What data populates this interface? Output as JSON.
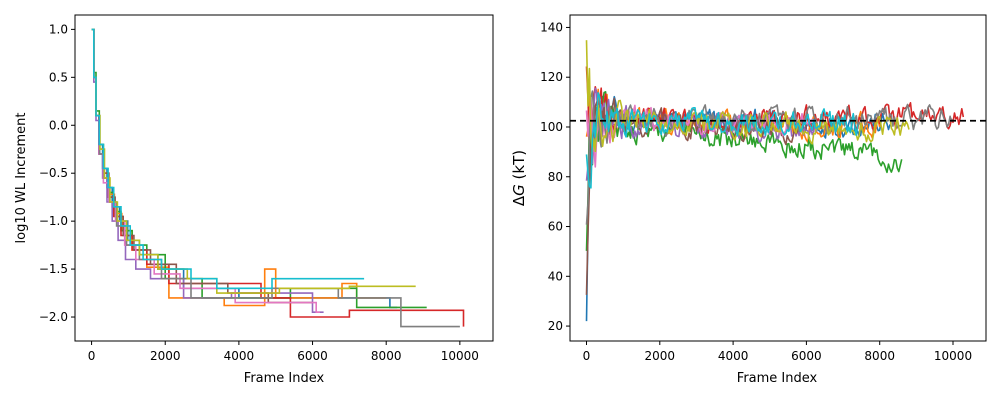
{
  "colors": [
    "#1f77b4",
    "#ff7f0e",
    "#2ca02c",
    "#d62728",
    "#9467bd",
    "#8c564b",
    "#e377c2",
    "#7f7f7f",
    "#bcbd22",
    "#17becf"
  ],
  "chart_data": [
    {
      "type": "line",
      "subtype": "step",
      "xlabel": "Frame Index",
      "ylabel": "log10 WL Increment",
      "xlim": [
        -450,
        10900
      ],
      "ylim": [
        -2.25,
        1.15
      ],
      "xticks": [
        0,
        2000,
        4000,
        6000,
        8000,
        10000
      ],
      "yticks": [
        -2.0,
        -1.5,
        -1.0,
        -0.5,
        0.0,
        0.5,
        1.0
      ],
      "xtick_labels": [
        "0",
        "2000",
        "4000",
        "6000",
        "8000",
        "10000"
      ],
      "ytick_labels": [
        "−2.0",
        "−1.5",
        "−1.0",
        "−0.5",
        "0.0",
        "0.5",
        "1.0"
      ],
      "grid": false,
      "series": [
        {
          "steps": [
            [
              0,
              1.0
            ],
            [
              60,
              0.5
            ],
            [
              120,
              0.1
            ],
            [
              200,
              -0.2
            ],
            [
              300,
              -0.45
            ],
            [
              420,
              -0.65
            ],
            [
              560,
              -0.85
            ],
            [
              760,
              -1.0
            ],
            [
              980,
              -1.2
            ],
            [
              1300,
              -1.35
            ],
            [
              1800,
              -1.5
            ],
            [
              2500,
              -1.7
            ],
            [
              4000,
              -1.8
            ],
            [
              8100,
              -1.9
            ]
          ],
          "end": 8300
        },
        {
          "steps": [
            [
              0,
              1.0
            ],
            [
              60,
              0.5
            ],
            [
              120,
              0.1
            ],
            [
              220,
              -0.25
            ],
            [
              330,
              -0.5
            ],
            [
              460,
              -0.72
            ],
            [
              620,
              -0.92
            ],
            [
              820,
              -1.1
            ],
            [
              1100,
              -1.3
            ],
            [
              1500,
              -1.48
            ],
            [
              2100,
              -1.8
            ],
            [
              3600,
              -1.88
            ],
            [
              4700,
              -1.5
            ],
            [
              5000,
              -1.8
            ],
            [
              6800,
              -1.65
            ],
            [
              7200,
              -1.8
            ]
          ],
          "end": 8000
        },
        {
          "steps": [
            [
              0,
              1.0
            ],
            [
              60,
              0.55
            ],
            [
              120,
              0.15
            ],
            [
              210,
              -0.2
            ],
            [
              320,
              -0.5
            ],
            [
              450,
              -0.7
            ],
            [
              600,
              -0.9
            ],
            [
              800,
              -1.1
            ],
            [
              1100,
              -1.25
            ],
            [
              1500,
              -1.35
            ],
            [
              2000,
              -1.6
            ],
            [
              3000,
              -1.8
            ],
            [
              5400,
              -1.7
            ],
            [
              7200,
              -1.9
            ]
          ],
          "end": 9100
        },
        {
          "steps": [
            [
              0,
              1.0
            ],
            [
              60,
              0.5
            ],
            [
              120,
              0.1
            ],
            [
              200,
              -0.3
            ],
            [
              310,
              -0.55
            ],
            [
              440,
              -0.75
            ],
            [
              600,
              -0.95
            ],
            [
              800,
              -1.15
            ],
            [
              1100,
              -1.3
            ],
            [
              1500,
              -1.45
            ],
            [
              2100,
              -1.65
            ],
            [
              4600,
              -1.8
            ],
            [
              5400,
              -2.0
            ],
            [
              7000,
              -1.93
            ],
            [
              10100,
              -2.1
            ]
          ],
          "end": 10100
        },
        {
          "steps": [
            [
              0,
              1.0
            ],
            [
              60,
              0.45
            ],
            [
              120,
              0.05
            ],
            [
              200,
              -0.3
            ],
            [
              300,
              -0.55
            ],
            [
              420,
              -0.8
            ],
            [
              560,
              -1.0
            ],
            [
              720,
              -1.2
            ],
            [
              920,
              -1.4
            ],
            [
              1200,
              -1.5
            ],
            [
              1600,
              -1.6
            ],
            [
              2500,
              -1.8
            ],
            [
              3800,
              -1.75
            ],
            [
              6000,
              -1.95
            ]
          ],
          "end": 6300
        },
        {
          "steps": [
            [
              0,
              1.0
            ],
            [
              60,
              0.5
            ],
            [
              120,
              0.1
            ],
            [
              220,
              -0.25
            ],
            [
              330,
              -0.5
            ],
            [
              470,
              -0.75
            ],
            [
              640,
              -0.95
            ],
            [
              860,
              -1.15
            ],
            [
              1150,
              -1.3
            ],
            [
              1600,
              -1.45
            ],
            [
              2300,
              -1.65
            ],
            [
              3700,
              -1.75
            ],
            [
              4800,
              -1.85
            ]
          ],
          "end": 6000
        },
        {
          "steps": [
            [
              0,
              1.0
            ],
            [
              60,
              0.5
            ],
            [
              120,
              0.1
            ],
            [
              210,
              -0.3
            ],
            [
              320,
              -0.6
            ],
            [
              470,
              -0.8
            ],
            [
              650,
              -1.0
            ],
            [
              900,
              -1.25
            ],
            [
              1200,
              -1.4
            ],
            [
              1700,
              -1.55
            ],
            [
              2400,
              -1.7
            ],
            [
              3900,
              -1.85
            ],
            [
              6100,
              -1.95
            ]
          ],
          "end": 6200
        },
        {
          "steps": [
            [
              0,
              1.0
            ],
            [
              60,
              0.5
            ],
            [
              120,
              0.1
            ],
            [
              220,
              -0.3
            ],
            [
              340,
              -0.55
            ],
            [
              490,
              -0.8
            ],
            [
              680,
              -1.05
            ],
            [
              950,
              -1.25
            ],
            [
              1300,
              -1.4
            ],
            [
              1900,
              -1.6
            ],
            [
              2700,
              -1.8
            ],
            [
              4900,
              -1.7
            ],
            [
              6700,
              -1.8
            ],
            [
              8400,
              -2.1
            ]
          ],
          "end": 10000
        },
        {
          "steps": [
            [
              0,
              1.0
            ],
            [
              60,
              0.5
            ],
            [
              120,
              0.1
            ],
            [
              230,
              -0.25
            ],
            [
              350,
              -0.55
            ],
            [
              500,
              -0.8
            ],
            [
              700,
              -1.0
            ],
            [
              950,
              -1.2
            ],
            [
              1300,
              -1.35
            ],
            [
              1800,
              -1.5
            ],
            [
              2600,
              -1.6
            ],
            [
              3400,
              -1.75
            ],
            [
              5100,
              -1.7
            ],
            [
              7000,
              -1.68
            ]
          ],
          "end": 8800
        },
        {
          "steps": [
            [
              0,
              1.0
            ],
            [
              60,
              0.5
            ],
            [
              120,
              0.1
            ],
            [
              210,
              -0.2
            ],
            [
              320,
              -0.45
            ],
            [
              450,
              -0.65
            ],
            [
              600,
              -0.85
            ],
            [
              800,
              -1.05
            ],
            [
              1050,
              -1.25
            ],
            [
              1400,
              -1.4
            ],
            [
              1900,
              -1.5
            ],
            [
              2700,
              -1.6
            ],
            [
              3400,
              -1.7
            ],
            [
              4900,
              -1.6
            ]
          ],
          "end": 7400
        }
      ]
    },
    {
      "type": "line",
      "xlabel": "Frame Index",
      "ylabel_italic": "G",
      "ylabel_prefix": "Δ",
      "ylabel_suffix": " (kT)",
      "xlim": [
        -450,
        10900
      ],
      "ylim": [
        14,
        145
      ],
      "xticks": [
        0,
        2000,
        4000,
        6000,
        8000,
        10000
      ],
      "yticks": [
        20,
        40,
        60,
        80,
        100,
        120,
        140
      ],
      "xtick_labels": [
        "0",
        "2000",
        "4000",
        "6000",
        "8000",
        "10000"
      ],
      "ytick_labels": [
        "20",
        "40",
        "60",
        "80",
        "100",
        "120",
        "140"
      ],
      "reference_line": 102.5,
      "grid": false,
      "series": [
        {
          "end": 8300,
          "final": 101
        },
        {
          "end": 8000,
          "final": 100
        },
        {
          "end": 8600,
          "final": 87
        },
        {
          "end": 10300,
          "final": 104
        },
        {
          "end": 6300,
          "final": 98
        },
        {
          "end": 6000,
          "final": 99
        },
        {
          "end": 6200,
          "final": 102
        },
        {
          "end": 10000,
          "final": 103
        },
        {
          "end": 8800,
          "final": 99
        },
        {
          "end": 7400,
          "final": 101
        }
      ]
    }
  ]
}
